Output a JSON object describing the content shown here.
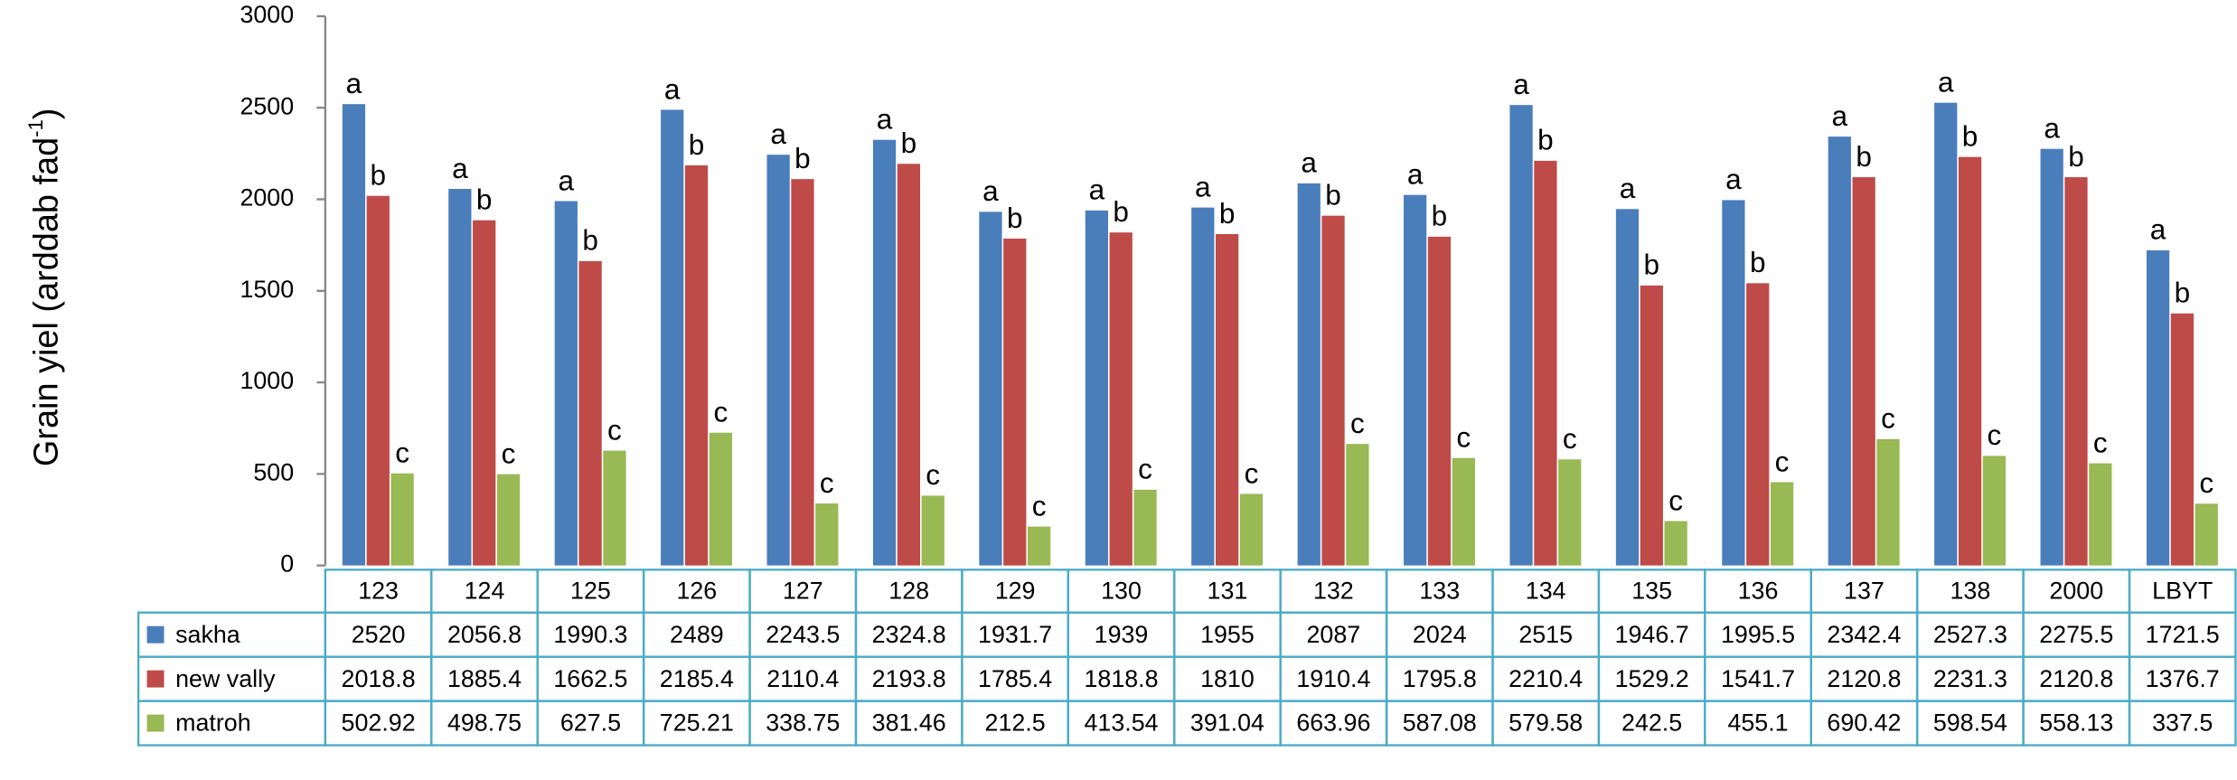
{
  "chart_data": {
    "type": "bar",
    "y_label": {
      "text": "Grain yiel  (arddab fad",
      "sup": "-1",
      "end": ")"
    },
    "categories": [
      "123",
      "124",
      "125",
      "126",
      "127",
      "128",
      "129",
      "130",
      "131",
      "132",
      "133",
      "134",
      "135",
      "136",
      "137",
      "138",
      "2000",
      "LBYT"
    ],
    "series": [
      {
        "name": "sakha",
        "color": "#4a7ebb",
        "annotation": "a",
        "values": [
          2520,
          2056.8,
          1990.3,
          2489,
          2243.5,
          2324.8,
          1931.7,
          1939,
          1955,
          2087,
          2024,
          2515,
          1946.7,
          1995.5,
          2342.4,
          2527.3,
          2275.5,
          1721.5
        ]
      },
      {
        "name": "new vally",
        "color": "#be4b48",
        "annotation": "b",
        "values": [
          2018.8,
          1885.4,
          1662.5,
          2185.4,
          2110.4,
          2193.8,
          1785.4,
          1818.8,
          1810,
          1910.4,
          1795.8,
          2210.4,
          1529.2,
          1541.7,
          2120.8,
          2231.3,
          2120.8,
          1376.7
        ]
      },
      {
        "name": "matroh",
        "color": "#98b954",
        "annotation": "c",
        "values": [
          502.92,
          498.75,
          627.5,
          725.21,
          338.75,
          381.46,
          212.5,
          413.54,
          391.04,
          663.96,
          587.08,
          579.58,
          242.5,
          455.1,
          690.42,
          598.54,
          558.13,
          337.5
        ]
      }
    ],
    "ylim": [
      0,
      3000
    ],
    "yticks": [
      0,
      500,
      1000,
      1500,
      2000,
      2500,
      3000
    ],
    "grid": false
  }
}
